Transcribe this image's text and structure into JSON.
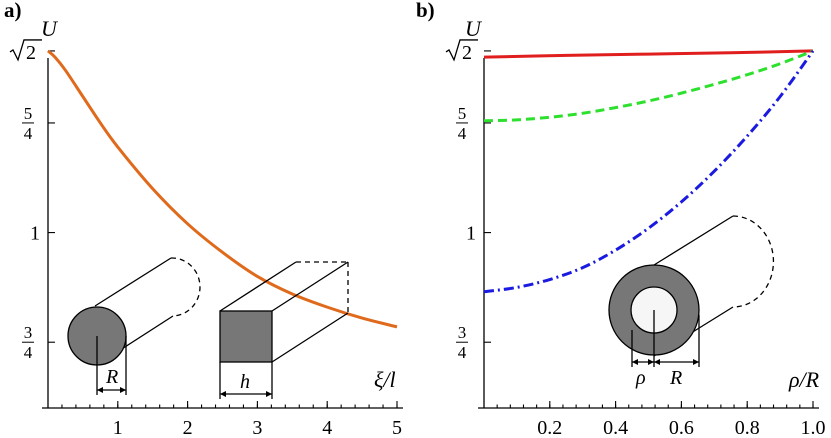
{
  "chart_data": [
    {
      "panel_label": "a)",
      "type": "line",
      "ylabel": "U",
      "xlabel": "ξ/l",
      "xlim": [
        0,
        5
      ],
      "ylim": [
        0.6,
        1.43
      ],
      "x_ticks": [
        {
          "value": 1,
          "label": "1"
        },
        {
          "value": 2,
          "label": "2"
        },
        {
          "value": 3,
          "label": "3"
        },
        {
          "value": 4,
          "label": "4"
        },
        {
          "value": 5,
          "label": "5"
        }
      ],
      "y_ticks": [
        {
          "value": 0.75,
          "num": "3",
          "den": "4"
        },
        {
          "value": 1.0,
          "label": "1"
        },
        {
          "value": 1.25,
          "num": "5",
          "den": "4"
        },
        {
          "value": 1.4142,
          "sqrt": "2"
        }
      ],
      "series": [
        {
          "color": "#e06a1c",
          "style": "solid",
          "x": [
            0,
            0.1,
            0.25,
            0.5,
            0.75,
            1.0,
            1.5,
            2.0,
            2.5,
            3.0,
            3.5,
            4.0,
            4.5,
            5.0
          ],
          "y": [
            1.4142,
            1.4,
            1.37,
            1.31,
            1.25,
            1.195,
            1.1,
            1.02,
            0.955,
            0.9,
            0.86,
            0.83,
            0.805,
            0.785
          ]
        }
      ],
      "inset_labels": {
        "radius": "R",
        "side": "h"
      }
    },
    {
      "panel_label": "b)",
      "type": "line",
      "ylabel": "U",
      "xlabel": "ρ/R",
      "xlim": [
        0,
        1.0
      ],
      "ylim": [
        0.6,
        1.43
      ],
      "x_ticks": [
        {
          "value": 0.2,
          "label": "0.2"
        },
        {
          "value": 0.4,
          "label": "0.4"
        },
        {
          "value": 0.6,
          "label": "0.6"
        },
        {
          "value": 0.8,
          "label": "0.8"
        },
        {
          "value": 1.0,
          "label": "1.0"
        }
      ],
      "y_ticks": [
        {
          "value": 0.75,
          "num": "3",
          "den": "4"
        },
        {
          "value": 1.0,
          "label": "1"
        },
        {
          "value": 1.25,
          "num": "5",
          "den": "4"
        },
        {
          "value": 1.4142,
          "sqrt": "2"
        }
      ],
      "series": [
        {
          "color": "#e01e1e",
          "style": "solid",
          "x": [
            0,
            0.25,
            0.5,
            0.75,
            1.0
          ],
          "y": [
            1.4,
            1.404,
            1.407,
            1.41,
            1.4142
          ]
        },
        {
          "color": "#2ee02e",
          "style": "dashed",
          "x": [
            0,
            0.1,
            0.2,
            0.3,
            0.4,
            0.5,
            0.6,
            0.7,
            0.8,
            0.9,
            1.0
          ],
          "y": [
            1.255,
            1.257,
            1.263,
            1.272,
            1.285,
            1.3,
            1.318,
            1.338,
            1.36,
            1.385,
            1.4142
          ]
        },
        {
          "color": "#1a1ae0",
          "style": "dashdot",
          "x": [
            0,
            0.1,
            0.2,
            0.3,
            0.4,
            0.5,
            0.6,
            0.7,
            0.8,
            0.9,
            1.0
          ],
          "y": [
            0.865,
            0.875,
            0.893,
            0.92,
            0.96,
            1.01,
            1.07,
            1.14,
            1.22,
            1.31,
            1.4142
          ]
        }
      ],
      "inset_labels": {
        "inner": "ρ",
        "outer": "R"
      }
    }
  ]
}
